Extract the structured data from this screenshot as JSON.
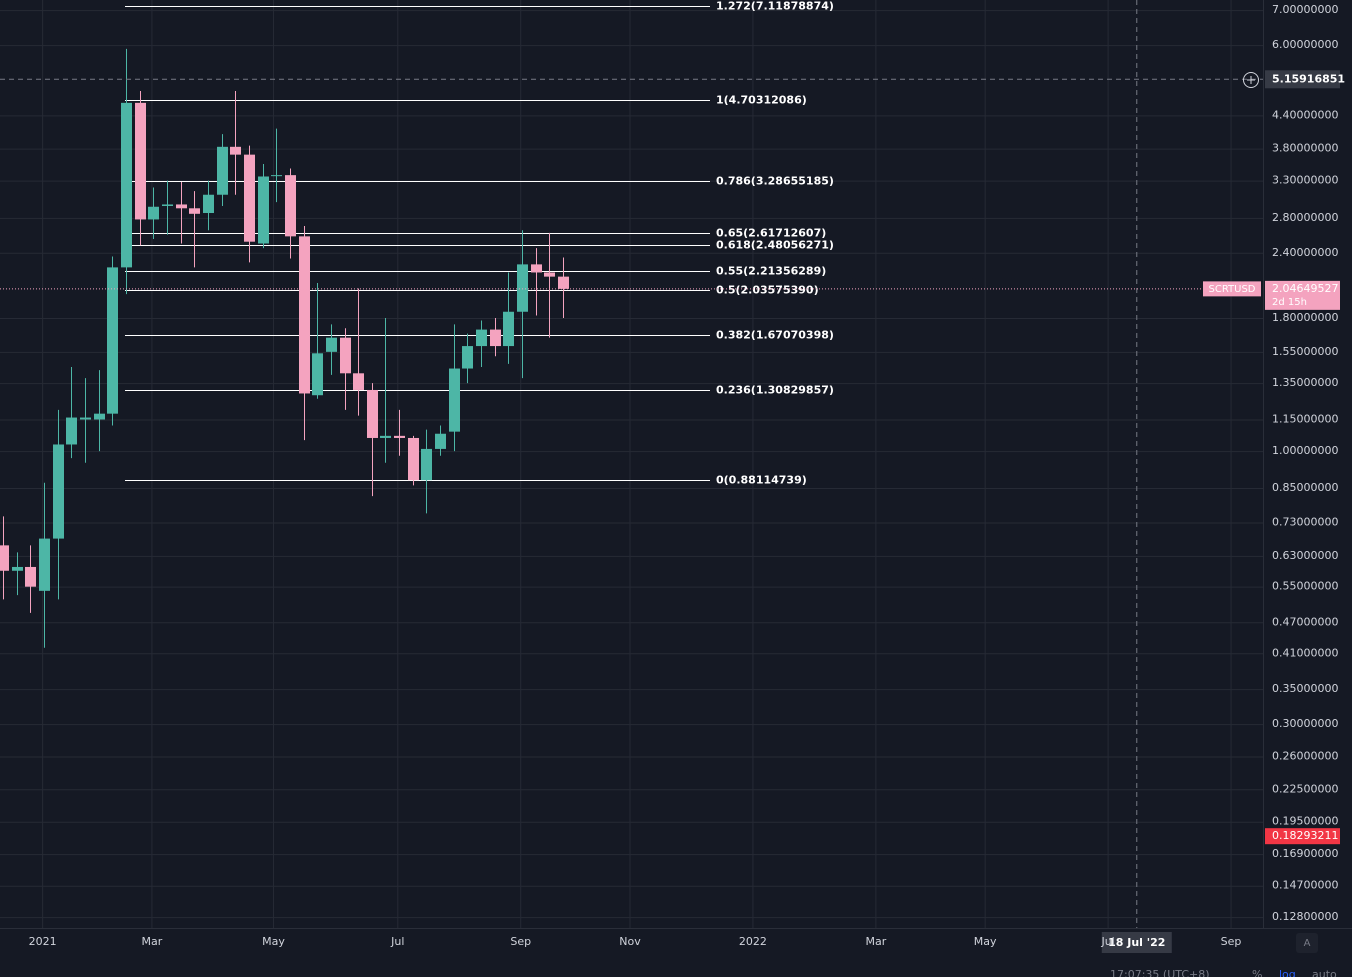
{
  "chart_data": {
    "type": "candlestick",
    "log_scale": true,
    "grid": true,
    "up_color": "#4db6a6",
    "down_color": "#f4a3bf",
    "ylim": [
      0.122,
      7.32
    ],
    "yticks": [
      {
        "value": 7,
        "label": "7.00000000"
      },
      {
        "value": 6,
        "label": "6.00000000"
      },
      {
        "value": 4.4,
        "label": "4.40000000"
      },
      {
        "value": 3.8,
        "label": "3.80000000"
      },
      {
        "value": 3.3,
        "label": "3.30000000"
      },
      {
        "value": 2.8,
        "label": "2.80000000"
      },
      {
        "value": 2.4,
        "label": "2.40000000"
      },
      {
        "value": 1.8,
        "label": "1.80000000"
      },
      {
        "value": 1.55,
        "label": "1.55000000"
      },
      {
        "value": 1.35,
        "label": "1.35000000"
      },
      {
        "value": 1.15,
        "label": "1.15000000"
      },
      {
        "value": 1,
        "label": "1.00000000"
      },
      {
        "value": 0.85,
        "label": "0.85000000"
      },
      {
        "value": 0.73,
        "label": "0.73000000"
      },
      {
        "value": 0.63,
        "label": "0.63000000"
      },
      {
        "value": 0.55,
        "label": "0.55000000"
      },
      {
        "value": 0.47,
        "label": "0.47000000"
      },
      {
        "value": 0.41,
        "label": "0.41000000"
      },
      {
        "value": 0.35,
        "label": "0.35000000"
      },
      {
        "value": 0.3,
        "label": "0.30000000"
      },
      {
        "value": 0.26,
        "label": "0.26000000"
      },
      {
        "value": 0.225,
        "label": "0.22500000"
      },
      {
        "value": 0.195,
        "label": "0.19500000"
      },
      {
        "value": 0.169,
        "label": "0.16900000"
      },
      {
        "value": 0.147,
        "label": "0.14700000"
      },
      {
        "value": 0.128,
        "label": "0.12800000"
      }
    ],
    "xlim": [
      -0.22,
      92.24
    ],
    "xticks": [
      {
        "value": 2.9,
        "label": "2021"
      },
      {
        "value": 10.9,
        "label": "Mar"
      },
      {
        "value": 19.8,
        "label": "May"
      },
      {
        "value": 28.9,
        "label": "Jul"
      },
      {
        "value": 37.9,
        "label": "Sep"
      },
      {
        "value": 45.9,
        "label": "Nov"
      },
      {
        "value": 54.9,
        "label": "2022"
      },
      {
        "value": 63.9,
        "label": "Mar"
      },
      {
        "value": 71.9,
        "label": "May"
      },
      {
        "value": 80.9,
        "label": "Jul"
      },
      {
        "value": 89.9,
        "label": "Sep"
      }
    ],
    "open": [
      0.66,
      0.59,
      0.6,
      0.54,
      0.68,
      1.03,
      1.15,
      1.15,
      1.18,
      2.25,
      4.65,
      2.78,
      2.95,
      2.97,
      2.92,
      2.86,
      3.1,
      3.83,
      3.7,
      2.5,
      3.37,
      3.38,
      2.58,
      1.28,
      1.55,
      1.65,
      1.41,
      1.31,
      1.06,
      1.07,
      1.06,
      0.88,
      1.01,
      1.09,
      1.44,
      1.59,
      1.71,
      1.59,
      1.85,
      2.28,
      2.2,
      2.16
    ],
    "high": [
      0.75,
      0.64,
      0.66,
      0.87,
      1.2,
      1.45,
      1.38,
      1.43,
      2.36,
      5.9,
      4.9,
      3.2,
      3.3,
      3.28,
      3.15,
      3.3,
      4.05,
      4.9,
      3.85,
      3.55,
      4.15,
      3.48,
      2.7,
      2.1,
      1.75,
      1.72,
      2.05,
      1.35,
      1.8,
      1.2,
      1.07,
      1.1,
      1.12,
      1.75,
      1.68,
      1.78,
      1.8,
      2.2,
      2.65,
      2.45,
      2.62,
      2.35
    ],
    "low": [
      0.52,
      0.53,
      0.49,
      0.42,
      0.52,
      0.97,
      0.95,
      1.0,
      1.12,
      2.0,
      2.48,
      2.55,
      2.6,
      2.5,
      2.25,
      2.65,
      2.95,
      3.1,
      2.3,
      2.45,
      3.0,
      2.34,
      1.05,
      1.26,
      1.4,
      1.2,
      1.17,
      0.82,
      0.95,
      0.98,
      0.86,
      0.76,
      0.98,
      1.0,
      1.35,
      1.45,
      1.52,
      1.47,
      1.38,
      1.82,
      1.65,
      1.8
    ],
    "close": [
      0.59,
      0.6,
      0.55,
      0.68,
      1.03,
      1.16,
      1.16,
      1.18,
      2.25,
      4.65,
      2.78,
      2.94,
      2.97,
      2.92,
      2.85,
      3.1,
      3.83,
      3.7,
      2.52,
      3.36,
      3.38,
      2.58,
      1.29,
      1.54,
      1.65,
      1.41,
      1.31,
      1.06,
      1.07,
      1.06,
      0.88,
      1.01,
      1.08,
      1.44,
      1.59,
      1.71,
      1.59,
      1.85,
      2.28,
      2.2,
      2.16,
      2.04649527
    ],
    "fib_levels": [
      {
        "label": "1.272(7.11878874)",
        "price": 7.11878874
      },
      {
        "label": "1(4.70312086)",
        "price": 4.70312086
      },
      {
        "label": "0.786(3.28655185)",
        "price": 3.28655185
      },
      {
        "label": "0.65(2.61712607)",
        "price": 2.61712607
      },
      {
        "label": "0.618(2.48056271)",
        "price": 2.48056271
      },
      {
        "label": "0.55(2.21356289)",
        "price": 2.21356289
      },
      {
        "label": "0.5(2.03575390)",
        "price": 2.0357539
      },
      {
        "label": "0.382(1.67070398)",
        "price": 1.67070398
      },
      {
        "label": "0.236(1.30829857)",
        "price": 1.30829857
      },
      {
        "label": "0(0.88114739)",
        "price": 0.88114739
      }
    ],
    "symbol": "SCRTUSD",
    "countdown": "2d 15h",
    "crosshair": {
      "price": 5.15916851,
      "x": 83,
      "date_label": "18 Jul '22"
    },
    "marker_price": 0.18293211
  },
  "ui": {
    "clock": "17:07:35 (UTC+8)",
    "percent": "%",
    "log": "log",
    "auto": "auto",
    "auto_button": "A"
  }
}
